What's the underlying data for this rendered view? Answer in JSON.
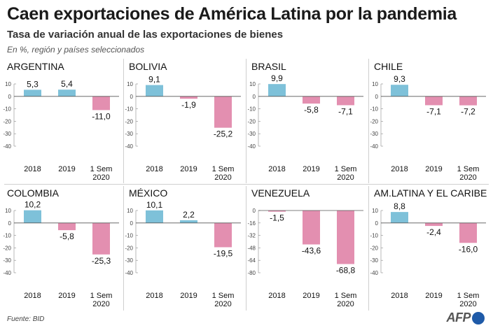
{
  "header": {
    "title": "Caen exportaciones de América Latina por la pandemia",
    "subtitle": "Tasa de variación anual de las exportaciones de bienes",
    "note": "En %, región y países seleccionados"
  },
  "footer": {
    "source": "Fuente: BID",
    "logo": "AFP"
  },
  "colors": {
    "positive": "#7ec1d9",
    "negative": "#e38fb0"
  },
  "chart_data": [
    {
      "type": "bar",
      "title": "ARGENTINA",
      "categories": [
        "2018",
        "2019",
        "1 Sem|2020"
      ],
      "values": [
        5.3,
        5.4,
        -11.0
      ],
      "value_labels": [
        "5,3",
        "5,4",
        "-11,0"
      ],
      "ylim": [
        -40,
        10
      ],
      "ticks": [
        10,
        0,
        -10,
        -20,
        -30,
        -40
      ],
      "tick_labels": [
        "10",
        "0",
        "-10",
        "-20",
        "-30",
        "-40"
      ]
    },
    {
      "type": "bar",
      "title": "BOLIVIA",
      "categories": [
        "2018",
        "2019",
        "1 Sem|2020"
      ],
      "values": [
        9.1,
        -1.9,
        -25.2
      ],
      "value_labels": [
        "9,1",
        "-1,9",
        "-25,2"
      ],
      "ylim": [
        -40,
        10
      ],
      "ticks": [
        10,
        0,
        -10,
        -20,
        -30,
        -40
      ],
      "tick_labels": [
        "10",
        "0",
        "-10",
        "-20",
        "-30",
        "-40"
      ]
    },
    {
      "type": "bar",
      "title": "BRASIL",
      "categories": [
        "2018",
        "2019",
        "1 Sem|2020"
      ],
      "values": [
        9.9,
        -5.8,
        -7.1
      ],
      "value_labels": [
        "9,9",
        "-5,8",
        "-7,1"
      ],
      "ylim": [
        -40,
        10
      ],
      "ticks": [
        10,
        0,
        -10,
        -20,
        -30,
        -40
      ],
      "tick_labels": [
        "10",
        "0",
        "-10",
        "-20",
        "-30",
        "-40"
      ]
    },
    {
      "type": "bar",
      "title": "CHILE",
      "categories": [
        "2018",
        "2019",
        "1 Sem|2020"
      ],
      "values": [
        9.3,
        -7.1,
        -7.2
      ],
      "value_labels": [
        "9,3",
        "-7,1",
        "-7,2"
      ],
      "ylim": [
        -40,
        10
      ],
      "ticks": [
        10,
        0,
        -10,
        -20,
        -30,
        -40
      ],
      "tick_labels": [
        "10",
        "0",
        "-10",
        "-20",
        "-30",
        "-40"
      ]
    },
    {
      "type": "bar",
      "title": "COLOMBIA",
      "categories": [
        "2018",
        "2019",
        "1 Sem|2020"
      ],
      "values": [
        10.2,
        -5.8,
        -25.3
      ],
      "value_labels": [
        "10,2",
        "-5,8",
        "-25,3"
      ],
      "ylim": [
        -40,
        10
      ],
      "ticks": [
        10,
        0,
        -10,
        -20,
        -30,
        -40
      ],
      "tick_labels": [
        "10",
        "0",
        "-10",
        "-20",
        "-30",
        "-40"
      ]
    },
    {
      "type": "bar",
      "title": "MÉXICO",
      "categories": [
        "2018",
        "2019",
        "1 Sem|2020"
      ],
      "values": [
        10.1,
        2.2,
        -19.5
      ],
      "value_labels": [
        "10,1",
        "2,2",
        "-19,5"
      ],
      "ylim": [
        -40,
        10
      ],
      "ticks": [
        10,
        0,
        -10,
        -20,
        -30,
        -40
      ],
      "tick_labels": [
        "10",
        "0",
        "-10",
        "-20",
        "-30",
        "-40"
      ]
    },
    {
      "type": "bar",
      "title": "VENEZUELA",
      "categories": [
        "2018",
        "2019",
        "1 Sem|2020"
      ],
      "values": [
        -1.5,
        -43.6,
        -68.8
      ],
      "value_labels": [
        "-1,5",
        "-43,6",
        "-68,8"
      ],
      "ylim": [
        -80,
        0
      ],
      "ticks": [
        0,
        -16,
        -32,
        -48,
        -64,
        -80
      ],
      "tick_labels": [
        "0",
        "-16",
        "-32",
        "-48",
        "-64",
        "-80"
      ]
    },
    {
      "type": "bar",
      "title": "AM.LATINA Y EL CARIBE",
      "categories": [
        "2018",
        "2019",
        "1 Sem|2020"
      ],
      "values": [
        8.8,
        -2.4,
        -16.0
      ],
      "value_labels": [
        "8,8",
        "-2,4",
        "-16,0"
      ],
      "ylim": [
        -40,
        10
      ],
      "ticks": [
        10,
        0,
        -10,
        -20,
        -30,
        -40
      ],
      "tick_labels": [
        "10",
        "0",
        "-10",
        "-20",
        "-30",
        "-40"
      ]
    }
  ]
}
